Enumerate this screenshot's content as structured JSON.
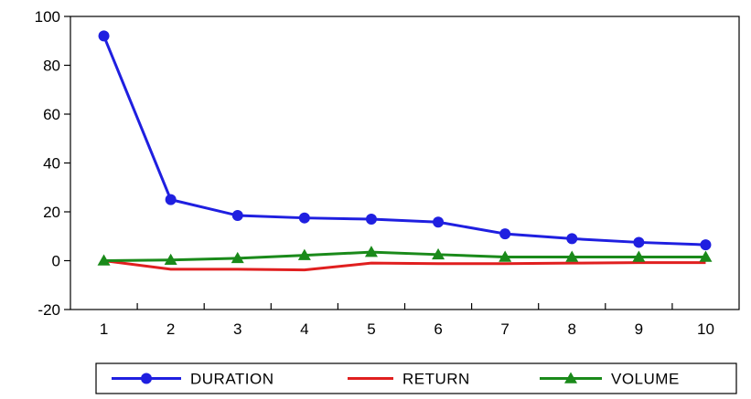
{
  "chart_data": {
    "type": "line",
    "x": [
      1,
      2,
      3,
      4,
      5,
      6,
      7,
      8,
      9,
      10
    ],
    "ylim": [
      -20,
      100
    ],
    "yticks": [
      -20,
      0,
      20,
      40,
      60,
      80,
      100
    ],
    "title": "",
    "xlabel": "",
    "ylabel": "",
    "grid": false,
    "legend_position": "bottom",
    "series": [
      {
        "name": "DURATION",
        "color": "#1f1fe0",
        "marker": "circle",
        "values": [
          92,
          25,
          18.5,
          17.5,
          17,
          15.8,
          11,
          9,
          7.5,
          6.5
        ]
      },
      {
        "name": "RETURN",
        "color": "#e01f1f",
        "marker": "none",
        "values": [
          0,
          -3.5,
          -3.5,
          -3.8,
          -1,
          -1.2,
          -1.2,
          -1,
          -0.8,
          -0.8
        ]
      },
      {
        "name": "VOLUME",
        "color": "#1a8a1a",
        "marker": "triangle",
        "values": [
          0,
          0.3,
          1,
          2.2,
          3.5,
          2.5,
          1.5,
          1.5,
          1.5,
          1.5
        ]
      }
    ]
  }
}
